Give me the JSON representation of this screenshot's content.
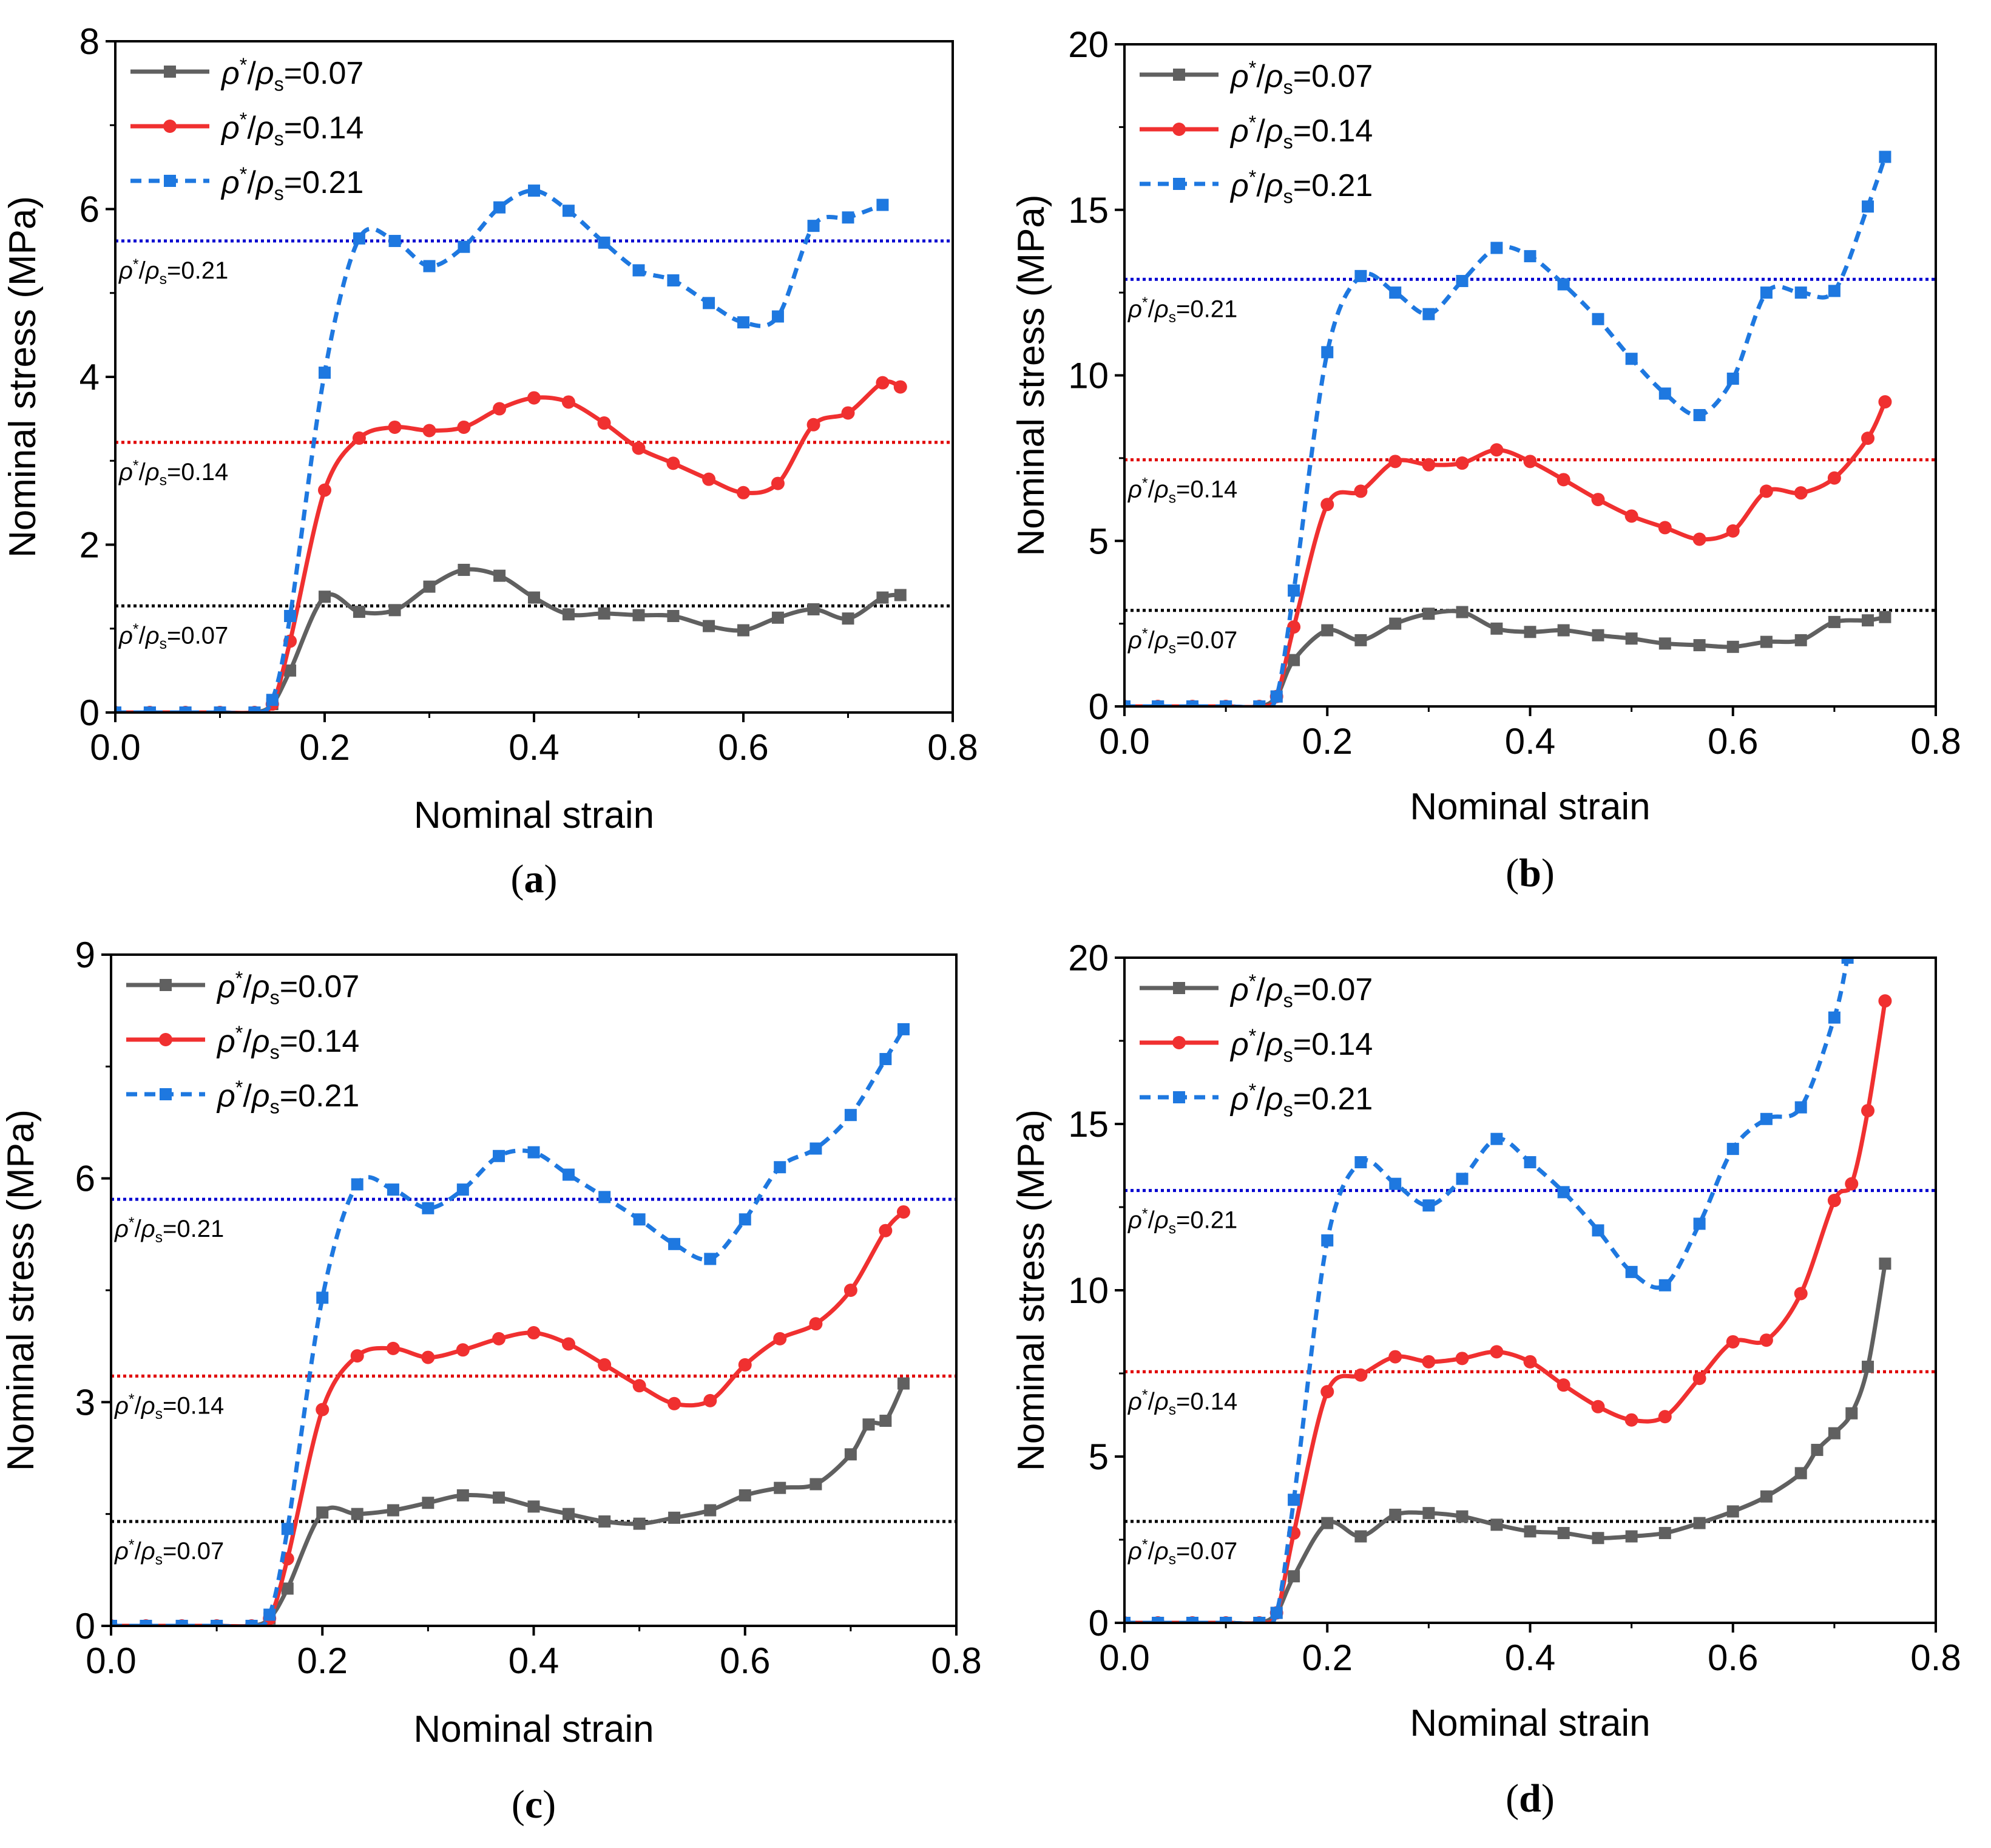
{
  "figure": {
    "panels_order": [
      "a",
      "b",
      "c",
      "d"
    ],
    "x_axis_label": "Nominal strain",
    "y_axis_label": "Nominal stress (MPa)",
    "legend": {
      "symbol": "ρ",
      "superscript": "*",
      "sep": "/",
      "subscript": "s",
      "values": [
        "=0.07",
        "=0.14",
        "=0.21"
      ]
    },
    "plateau_labels": [
      "0.07",
      "0.14",
      "0.21"
    ],
    "colors": {
      "s007": "#606060",
      "s014": "#f03030",
      "s021": "#1e78e0",
      "ref007": "#000000",
      "ref014": "#e00000",
      "ref021": "#0000d0"
    }
  },
  "chart_data": [
    {
      "panel_label": "(a)",
      "type": "line",
      "xlabel": "Nominal strain",
      "ylabel": "Nominal stress (MPa)",
      "xlim": [
        0,
        0.8
      ],
      "ylim": [
        0,
        8
      ],
      "xticks": [
        0.0,
        0.2,
        0.4,
        0.6,
        0.8
      ],
      "yticks": [
        0,
        2,
        4,
        6,
        8
      ],
      "xtick_labels": [
        "0.0",
        "0.2",
        "0.4",
        "0.6",
        "0.8"
      ],
      "ytick_labels": [
        "0",
        "2",
        "4",
        "6",
        "8"
      ],
      "legend_position": "top-left",
      "plateaus": [
        1.27,
        3.22,
        5.62
      ],
      "series": [
        {
          "name": "ρ*/ρs=0.07",
          "style": "solid",
          "marker": "square",
          "x": [
            0,
            0.033,
            0.067,
            0.1,
            0.133,
            0.15,
            0.167,
            0.2,
            0.233,
            0.267,
            0.3,
            0.333,
            0.367,
            0.4,
            0.433,
            0.467,
            0.5,
            0.533,
            0.567,
            0.6,
            0.633,
            0.667,
            0.7,
            0.733,
            0.75
          ],
          "y": [
            0,
            0,
            0,
            0,
            0,
            0.1,
            0.5,
            1.38,
            1.2,
            1.22,
            1.5,
            1.7,
            1.63,
            1.37,
            1.17,
            1.18,
            1.16,
            1.15,
            1.03,
            0.98,
            1.13,
            1.23,
            1.12,
            1.37,
            1.4
          ]
        },
        {
          "name": "ρ*/ρs=0.14",
          "style": "solid",
          "marker": "circle",
          "x": [
            0,
            0.033,
            0.067,
            0.1,
            0.133,
            0.15,
            0.167,
            0.2,
            0.233,
            0.267,
            0.3,
            0.333,
            0.367,
            0.4,
            0.433,
            0.467,
            0.5,
            0.533,
            0.567,
            0.6,
            0.633,
            0.667,
            0.7,
            0.733,
            0.75
          ],
          "y": [
            0,
            0,
            0,
            0,
            0,
            0.1,
            0.85,
            2.65,
            3.27,
            3.4,
            3.36,
            3.4,
            3.62,
            3.75,
            3.7,
            3.45,
            3.15,
            2.97,
            2.78,
            2.62,
            2.73,
            3.43,
            3.57,
            3.93,
            3.88
          ]
        },
        {
          "name": "ρ*/ρs=0.21",
          "style": "dashed",
          "marker": "square",
          "x": [
            0,
            0.033,
            0.067,
            0.1,
            0.133,
            0.15,
            0.167,
            0.2,
            0.233,
            0.267,
            0.3,
            0.333,
            0.367,
            0.4,
            0.433,
            0.467,
            0.5,
            0.533,
            0.567,
            0.6,
            0.633,
            0.667,
            0.7,
            0.733
          ],
          "y": [
            0,
            0,
            0,
            0,
            0,
            0.15,
            1.15,
            4.05,
            5.65,
            5.62,
            5.32,
            5.55,
            6.02,
            6.22,
            5.98,
            5.6,
            5.27,
            5.15,
            4.88,
            4.65,
            4.72,
            5.8,
            5.9,
            6.05
          ]
        }
      ]
    },
    {
      "panel_label": "(b)",
      "type": "line",
      "xlabel": "Nominal strain",
      "ylabel": "Nominal stress (MPa)",
      "xlim": [
        0,
        0.8
      ],
      "ylim": [
        0,
        20
      ],
      "xticks": [
        0.0,
        0.2,
        0.4,
        0.6,
        0.8
      ],
      "yticks": [
        0,
        5,
        10,
        15,
        20
      ],
      "xtick_labels": [
        "0.0",
        "0.2",
        "0.4",
        "0.6",
        "0.8"
      ],
      "ytick_labels": [
        "0",
        "5",
        "10",
        "15",
        "20"
      ],
      "legend_position": "top-left",
      "plateaus": [
        2.9,
        7.45,
        12.9
      ],
      "series": [
        {
          "name": "ρ*/ρs=0.07",
          "style": "solid",
          "marker": "square",
          "x": [
            0,
            0.033,
            0.067,
            0.1,
            0.133,
            0.15,
            0.167,
            0.2,
            0.233,
            0.267,
            0.3,
            0.333,
            0.367,
            0.4,
            0.433,
            0.467,
            0.5,
            0.533,
            0.567,
            0.6,
            0.633,
            0.667,
            0.7,
            0.733,
            0.75
          ],
          "y": [
            0,
            0,
            0,
            0,
            0,
            0.3,
            1.4,
            2.3,
            2.0,
            2.5,
            2.8,
            2.85,
            2.35,
            2.25,
            2.3,
            2.15,
            2.05,
            1.9,
            1.85,
            1.8,
            1.95,
            2.0,
            2.55,
            2.6,
            2.7
          ]
        },
        {
          "name": "ρ*/ρs=0.14",
          "style": "solid",
          "marker": "circle",
          "x": [
            0,
            0.033,
            0.067,
            0.1,
            0.133,
            0.15,
            0.167,
            0.2,
            0.233,
            0.267,
            0.3,
            0.333,
            0.367,
            0.4,
            0.433,
            0.467,
            0.5,
            0.533,
            0.567,
            0.6,
            0.633,
            0.667,
            0.7,
            0.733,
            0.75
          ],
          "y": [
            0,
            0,
            0,
            0,
            0,
            0.3,
            2.4,
            6.1,
            6.5,
            7.4,
            7.3,
            7.35,
            7.75,
            7.4,
            6.85,
            6.25,
            5.75,
            5.4,
            5.05,
            5.3,
            6.5,
            6.45,
            6.9,
            8.1,
            9.2
          ]
        },
        {
          "name": "ρ*/ρs=0.21",
          "style": "dashed",
          "marker": "square",
          "x": [
            0,
            0.033,
            0.067,
            0.1,
            0.133,
            0.15,
            0.167,
            0.2,
            0.233,
            0.267,
            0.3,
            0.333,
            0.367,
            0.4,
            0.433,
            0.467,
            0.5,
            0.533,
            0.567,
            0.6,
            0.633,
            0.667,
            0.7,
            0.733,
            0.75
          ],
          "y": [
            0,
            0,
            0,
            0,
            0,
            0.3,
            3.5,
            10.7,
            13.0,
            12.5,
            11.85,
            12.85,
            13.85,
            13.6,
            12.75,
            11.7,
            10.5,
            9.45,
            8.8,
            9.9,
            12.5,
            12.5,
            12.55,
            15.1,
            16.6
          ]
        }
      ]
    },
    {
      "panel_label": "(c)",
      "type": "line",
      "xlabel": "Nominal strain",
      "ylabel": "Nominal stress (MPa)",
      "xlim": [
        0,
        0.8
      ],
      "ylim": [
        0,
        9
      ],
      "xticks": [
        0.0,
        0.2,
        0.4,
        0.6,
        0.8
      ],
      "yticks": [
        0,
        3,
        6,
        9
      ],
      "xtick_labels": [
        "0.0",
        "0.2",
        "0.4",
        "0.6",
        "0.8"
      ],
      "ytick_labels": [
        "0",
        "3",
        "6",
        "9"
      ],
      "legend_position": "top-left",
      "plateaus": [
        1.4,
        3.35,
        5.72
      ],
      "series": [
        {
          "name": "ρ*/ρs=0.07",
          "style": "solid",
          "marker": "square",
          "x": [
            0,
            0.033,
            0.067,
            0.1,
            0.133,
            0.15,
            0.167,
            0.2,
            0.233,
            0.267,
            0.3,
            0.333,
            0.367,
            0.4,
            0.433,
            0.467,
            0.5,
            0.533,
            0.567,
            0.6,
            0.633,
            0.667,
            0.7,
            0.717,
            0.733,
            0.75
          ],
          "y": [
            0,
            0,
            0,
            0,
            0,
            0.1,
            0.5,
            1.52,
            1.5,
            1.55,
            1.65,
            1.75,
            1.72,
            1.6,
            1.5,
            1.4,
            1.37,
            1.45,
            1.55,
            1.75,
            1.85,
            1.9,
            2.3,
            2.7,
            2.75,
            3.25
          ]
        },
        {
          "name": "ρ*/ρs=0.14",
          "style": "solid",
          "marker": "circle",
          "x": [
            0,
            0.033,
            0.067,
            0.1,
            0.133,
            0.15,
            0.167,
            0.2,
            0.233,
            0.267,
            0.3,
            0.333,
            0.367,
            0.4,
            0.433,
            0.467,
            0.5,
            0.533,
            0.567,
            0.6,
            0.633,
            0.667,
            0.7,
            0.733,
            0.75
          ],
          "y": [
            0,
            0,
            0,
            0,
            0,
            0.1,
            0.9,
            2.9,
            3.62,
            3.72,
            3.6,
            3.7,
            3.85,
            3.93,
            3.78,
            3.5,
            3.22,
            2.98,
            3.02,
            3.5,
            3.85,
            4.05,
            4.5,
            5.3,
            5.55
          ]
        },
        {
          "name": "ρ*/ρs=0.21",
          "style": "dashed",
          "marker": "square",
          "x": [
            0,
            0.033,
            0.067,
            0.1,
            0.133,
            0.15,
            0.167,
            0.2,
            0.233,
            0.267,
            0.3,
            0.333,
            0.367,
            0.4,
            0.433,
            0.467,
            0.5,
            0.533,
            0.567,
            0.6,
            0.633,
            0.667,
            0.7,
            0.733,
            0.75
          ],
          "y": [
            0,
            0,
            0,
            0,
            0,
            0.15,
            1.3,
            4.4,
            5.92,
            5.85,
            5.6,
            5.85,
            6.3,
            6.35,
            6.05,
            5.75,
            5.45,
            5.12,
            4.92,
            5.45,
            6.15,
            6.4,
            6.85,
            7.6,
            8.0
          ]
        }
      ]
    },
    {
      "panel_label": "(d)",
      "type": "line",
      "xlabel": "Nominal strain",
      "ylabel": "Nominal stress (MPa)",
      "xlim": [
        0,
        0.8
      ],
      "ylim": [
        0,
        20
      ],
      "xticks": [
        0.0,
        0.2,
        0.4,
        0.6,
        0.8
      ],
      "yticks": [
        0,
        5,
        10,
        15,
        20
      ],
      "xtick_labels": [
        "0.0",
        "0.2",
        "0.4",
        "0.6",
        "0.8"
      ],
      "ytick_labels": [
        "0",
        "5",
        "10",
        "15",
        "20"
      ],
      "legend_position": "top-left",
      "plateaus": [
        3.05,
        7.55,
        13.0
      ],
      "series": [
        {
          "name": "ρ*/ρs=0.07",
          "style": "solid",
          "marker": "square",
          "x": [
            0,
            0.033,
            0.067,
            0.1,
            0.133,
            0.15,
            0.167,
            0.2,
            0.233,
            0.267,
            0.3,
            0.333,
            0.367,
            0.4,
            0.433,
            0.467,
            0.5,
            0.533,
            0.567,
            0.6,
            0.633,
            0.667,
            0.683,
            0.7,
            0.717,
            0.733,
            0.75
          ],
          "y": [
            0,
            0,
            0,
            0,
            0,
            0.3,
            1.4,
            3.0,
            2.6,
            3.25,
            3.3,
            3.2,
            2.95,
            2.75,
            2.7,
            2.55,
            2.6,
            2.7,
            3.0,
            3.35,
            3.8,
            4.5,
            5.2,
            5.7,
            6.3,
            7.7,
            10.8
          ]
        },
        {
          "name": "ρ*/ρs=0.14",
          "style": "solid",
          "marker": "circle",
          "x": [
            0,
            0.033,
            0.067,
            0.1,
            0.133,
            0.15,
            0.167,
            0.2,
            0.233,
            0.267,
            0.3,
            0.333,
            0.367,
            0.4,
            0.433,
            0.467,
            0.5,
            0.533,
            0.567,
            0.6,
            0.633,
            0.667,
            0.7,
            0.717,
            0.733,
            0.75
          ],
          "y": [
            0,
            0,
            0,
            0,
            0,
            0.3,
            2.7,
            6.95,
            7.45,
            8.0,
            7.85,
            7.95,
            8.15,
            7.85,
            7.15,
            6.5,
            6.1,
            6.2,
            7.35,
            8.45,
            8.5,
            9.9,
            12.7,
            13.2,
            15.4,
            18.7
          ]
        },
        {
          "name": "ρ*/ρs=0.21",
          "style": "dashed",
          "marker": "square",
          "x": [
            0,
            0.033,
            0.067,
            0.1,
            0.133,
            0.15,
            0.167,
            0.2,
            0.233,
            0.267,
            0.3,
            0.333,
            0.367,
            0.4,
            0.433,
            0.467,
            0.5,
            0.533,
            0.567,
            0.6,
            0.633,
            0.667,
            0.7,
            0.713
          ],
          "y": [
            0,
            0,
            0,
            0,
            0,
            0.3,
            3.7,
            11.5,
            13.85,
            13.2,
            12.55,
            13.35,
            14.55,
            13.85,
            12.95,
            11.8,
            10.55,
            10.15,
            12.0,
            14.25,
            15.15,
            15.5,
            18.2,
            20.0
          ]
        }
      ]
    }
  ]
}
